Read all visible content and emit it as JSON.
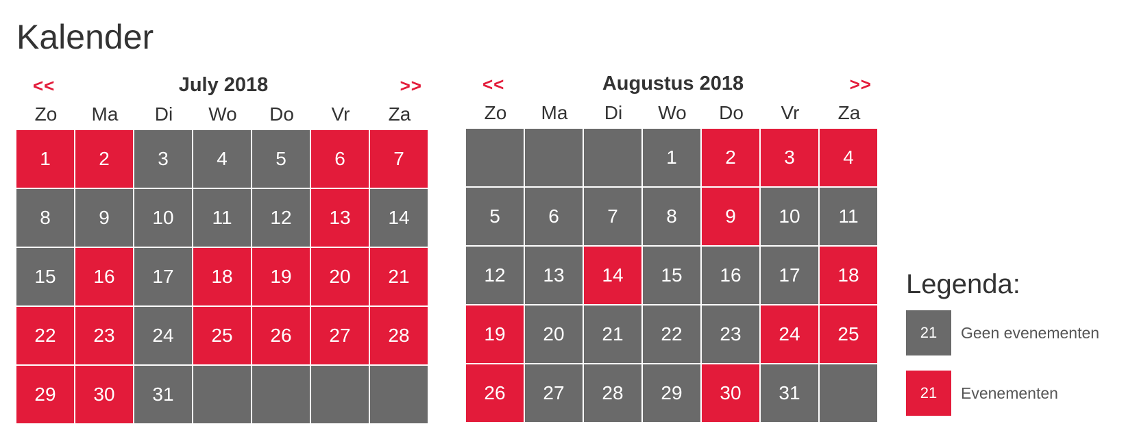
{
  "page": {
    "title": "Kalender"
  },
  "colors": {
    "no_event": "#6a6a6a",
    "event": "#e31b3a",
    "nav": "#e31b3a"
  },
  "calendars": [
    {
      "prev_label": "<<",
      "next_label": ">>",
      "month_title": "July 2018",
      "weekdays": [
        "Zo",
        "Ma",
        "Di",
        "Wo",
        "Do",
        "Vr",
        "Za"
      ],
      "leading_blanks": 0,
      "days_in_month": 31,
      "event_days": [
        1,
        2,
        6,
        7,
        13,
        16,
        18,
        19,
        20,
        21,
        22,
        23,
        25,
        26,
        27,
        28,
        29,
        30
      ],
      "total_cells": 35
    },
    {
      "prev_label": "<<",
      "next_label": ">>",
      "month_title": "Augustus 2018",
      "weekdays": [
        "Zo",
        "Ma",
        "Di",
        "Wo",
        "Do",
        "Vr",
        "Za"
      ],
      "leading_blanks": 3,
      "days_in_month": 31,
      "event_days": [
        2,
        3,
        4,
        9,
        14,
        18,
        19,
        24,
        25,
        26,
        30
      ],
      "total_cells": 35
    }
  ],
  "legend": {
    "title": "Legenda:",
    "items": [
      {
        "sample": "21",
        "label": "Geen evenementen",
        "type": "none"
      },
      {
        "sample": "21",
        "label": "Evenementen",
        "type": "event"
      }
    ]
  }
}
